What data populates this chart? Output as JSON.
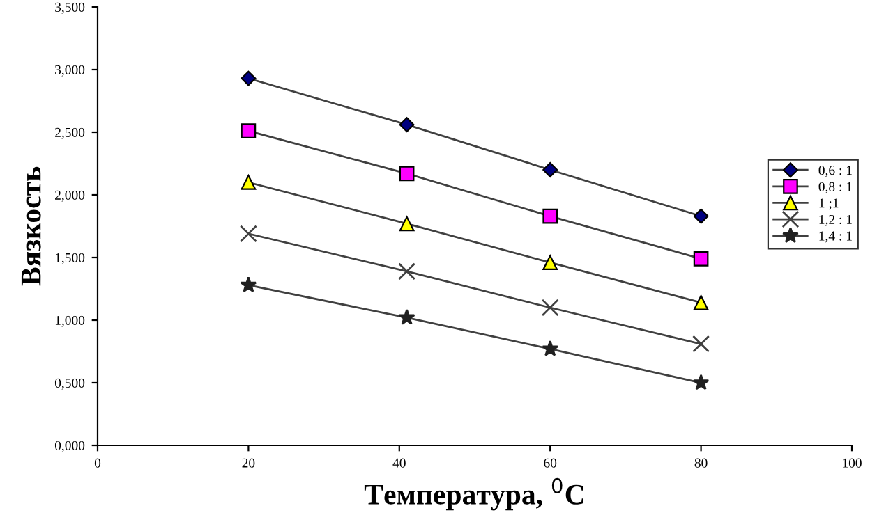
{
  "chart_data": {
    "type": "line",
    "xlabel": "Температура, $^{0}$C",
    "ylabel": "Вязкость",
    "x": [
      20,
      41,
      60,
      80
    ],
    "series": [
      {
        "name": "0,6 : 1",
        "color": "#000080",
        "marker": "diamond",
        "values": [
          2.93,
          2.56,
          2.2,
          1.83
        ]
      },
      {
        "name": "0,8 : 1",
        "color": "#ff00ff",
        "marker": "square",
        "values": [
          2.51,
          2.17,
          1.83,
          1.49
        ]
      },
      {
        "name": "1 ;1",
        "color": "#ffff00",
        "marker": "triangle",
        "values": [
          2.1,
          1.77,
          1.46,
          1.14
        ]
      },
      {
        "name": "1,2 : 1",
        "color": "#404040",
        "marker": "cross",
        "values": [
          1.69,
          1.39,
          1.1,
          0.81
        ]
      },
      {
        "name": "1,4 : 1",
        "color": "#202020",
        "marker": "star",
        "values": [
          1.28,
          1.02,
          0.77,
          0.5
        ]
      }
    ],
    "xlim": [
      0,
      100
    ],
    "xticks": [
      0,
      20,
      40,
      60,
      80,
      100
    ],
    "ylim": [
      0,
      3.5
    ],
    "yticks": [
      {
        "value": 0,
        "label": "0,000"
      },
      {
        "value": 0.5,
        "label": "0,500"
      },
      {
        "value": 1.0,
        "label": "1,000"
      },
      {
        "value": 1.5,
        "label": "1,500"
      },
      {
        "value": 2.0,
        "label": "2,000"
      },
      {
        "value": 2.5,
        "label": "2,500"
      },
      {
        "value": 3.0,
        "label": "3,000"
      },
      {
        "value": 3.5,
        "label": "3,500"
      }
    ],
    "grid": false,
    "legend": "right",
    "line_style": "solid"
  }
}
